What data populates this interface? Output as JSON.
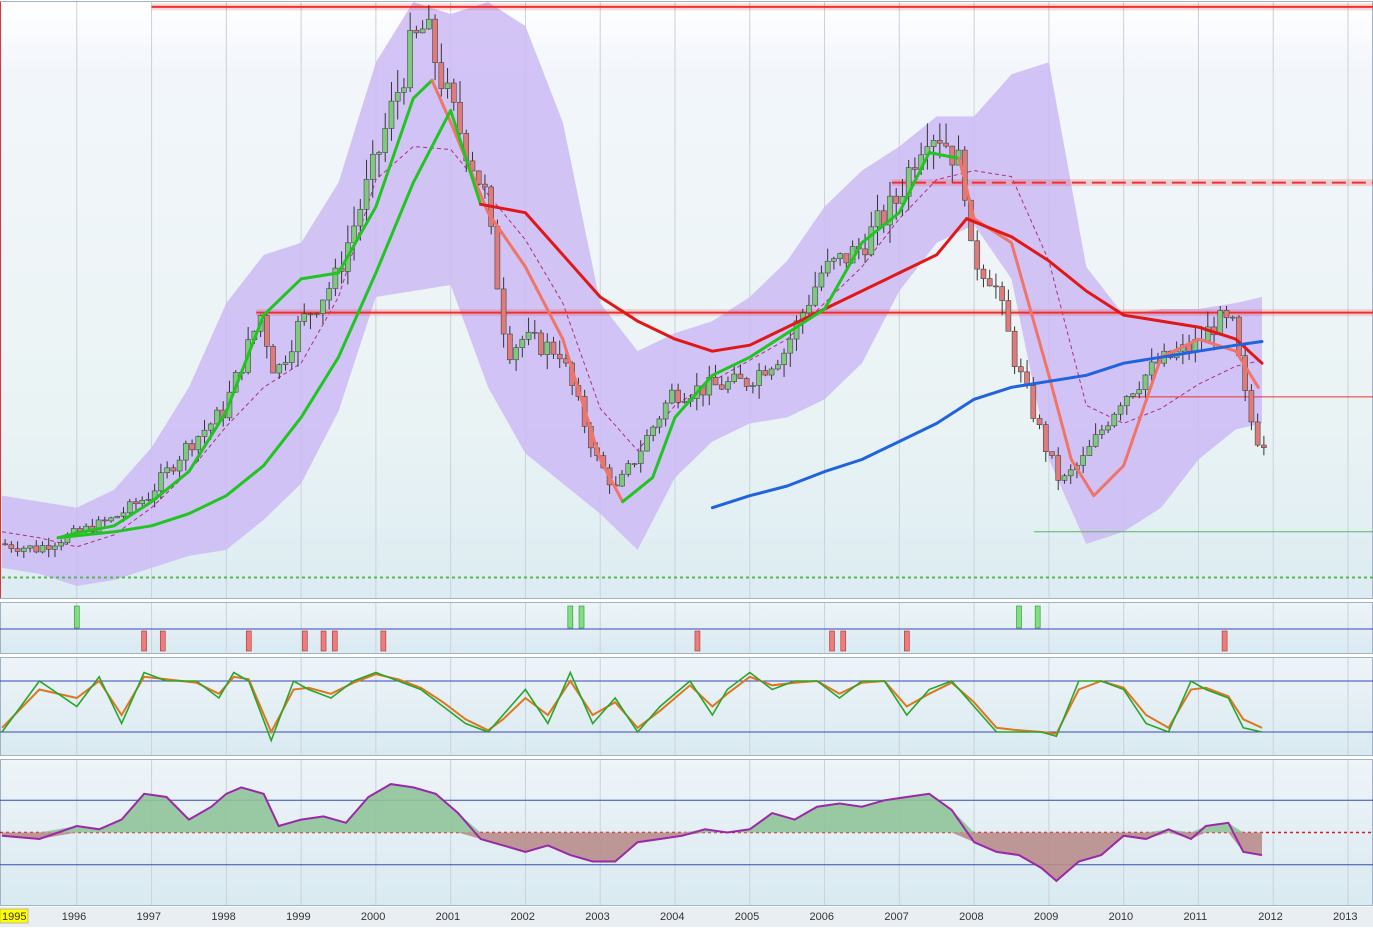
{
  "colors": {
    "background_top": "#f3f7fb",
    "background_bottom": "#d6e9f0",
    "band_fill": "#cdbaf5",
    "candle_up": "#7fc97f",
    "candle_down": "#e07b7b",
    "ma_green": "#22c422",
    "ma_salmon": "#f07468",
    "ma_red": "#e01818",
    "ma_blue": "#1f63e0",
    "level_red": "#ee3030",
    "level_green": "#5ab55a",
    "signal_buy": "#7ee07e",
    "signal_sell": "#ef7c7c",
    "osc_green": "#2aa52a",
    "osc_orange": "#dd7722",
    "hist_line": "#9a28a8",
    "hist_pos_fill": "#8fc49a",
    "hist_neg_fill": "#b98c8c",
    "panel_line": "#3949b6",
    "grid": "#c8d2de",
    "year_highlight": "#ffff00"
  },
  "chart_data": [
    {
      "type": "line",
      "panel": "price",
      "x_axis": {
        "start_year": 1995,
        "end_year": 2013,
        "tick_labels": [
          "1995",
          "1996",
          "1997",
          "1998",
          "1999",
          "2000",
          "2001",
          "2002",
          "2003",
          "2004",
          "2005",
          "2006",
          "2007",
          "2008",
          "2009",
          "2010",
          "2011",
          "2012",
          "2013"
        ],
        "highlighted_label": "1995"
      },
      "ylim": [
        -55,
        440
      ],
      "series": [
        {
          "role": "price",
          "style": "candlestick",
          "x": [
            1995.0,
            1995.5,
            1996.0,
            1996.5,
            1997.0,
            1997.5,
            1998.0,
            1998.5,
            1998.7,
            1999.0,
            1999.5,
            2000.0,
            2000.5,
            2000.7,
            2001.0,
            2001.5,
            2001.8,
            2002.0,
            2002.5,
            2003.0,
            2003.25,
            2003.5,
            2004.0,
            2004.5,
            2005.0,
            2005.5,
            2006.0,
            2006.5,
            2007.0,
            2007.4,
            2007.6,
            2007.9,
            2008.0,
            2008.3,
            2008.6,
            2009.0,
            2009.2,
            2009.5,
            2010.0,
            2010.5,
            2011.0,
            2011.3,
            2011.5,
            2011.7,
            2011.85
          ],
          "y": [
            -10,
            -14,
            -2,
            10,
            30,
            70,
            100,
            180,
            130,
            170,
            210,
            300,
            400,
            420,
            360,
            280,
            150,
            160,
            150,
            60,
            35,
            60,
            115,
            120,
            125,
            150,
            215,
            235,
            275,
            335,
            330,
            300,
            230,
            210,
            140,
            70,
            40,
            60,
            110,
            140,
            155,
            175,
            170,
            100,
            75
          ]
        },
        {
          "name": "green MA fast",
          "style": "line",
          "color_key": "ma_green",
          "width": 3,
          "x": [
            1995.75,
            1996.0,
            1996.5,
            1997.0,
            1997.5,
            1998.0,
            1998.5,
            1999.0,
            1999.5,
            2000.0,
            2000.5,
            2000.75
          ],
          "y": [
            -5,
            -1,
            5,
            25,
            50,
            100,
            180,
            210,
            215,
            270,
            360,
            375
          ]
        },
        {
          "name": "salmon MA",
          "style": "line",
          "color_key": "ma_salmon",
          "width": 3,
          "x": [
            2000.75,
            2001.0,
            2001.5,
            2002.0,
            2002.5,
            2003.0,
            2003.3
          ],
          "y": [
            375,
            340,
            265,
            220,
            160,
            60,
            25
          ]
        },
        {
          "name": "green MA slow",
          "style": "line",
          "color_key": "ma_green",
          "width": 3,
          "x": [
            1995.75,
            1996.5,
            1997.0,
            1997.5,
            1998.0,
            1998.5,
            1999.0,
            1999.5,
            2000.0,
            2000.5,
            2001.0,
            2001.4
          ],
          "y": [
            -5,
            0,
            5,
            15,
            30,
            55,
            95,
            145,
            215,
            290,
            350,
            272
          ]
        },
        {
          "name": "red MA",
          "style": "line",
          "color_key": "ma_red",
          "width": 3,
          "x": [
            2001.4,
            2002.0,
            2002.5,
            2003.0,
            2003.5,
            2004.0,
            2004.5,
            2005.0,
            2005.5,
            2006.0,
            2006.5,
            2007.0,
            2007.5,
            2007.9
          ],
          "y": [
            272,
            265,
            230,
            195,
            175,
            160,
            150,
            155,
            170,
            185,
            200,
            215,
            230,
            260
          ]
        },
        {
          "name": "green MA 2003-2008",
          "style": "line",
          "color_key": "ma_green",
          "width": 3,
          "x": [
            2003.3,
            2003.7,
            2004.0,
            2004.5,
            2005.0,
            2005.5,
            2006.0,
            2006.5,
            2007.0,
            2007.4,
            2007.8
          ],
          "y": [
            25,
            45,
            95,
            130,
            145,
            165,
            185,
            240,
            265,
            315,
            310
          ]
        },
        {
          "name": "salmon MA 2008-2012",
          "style": "line",
          "color_key": "ma_salmon",
          "width": 3,
          "x": [
            2007.8,
            2008.0,
            2008.5,
            2009.0,
            2009.3,
            2009.6,
            2010.0,
            2010.5,
            2011.0,
            2011.5,
            2011.8
          ],
          "y": [
            310,
            260,
            240,
            130,
            60,
            30,
            55,
            145,
            160,
            150,
            120
          ]
        },
        {
          "name": "red MA 2008-2012",
          "style": "line",
          "color_key": "ma_red",
          "width": 3,
          "x": [
            2007.9,
            2008.5,
            2009.0,
            2009.5,
            2010.0,
            2010.5,
            2011.0,
            2011.5,
            2011.85
          ],
          "y": [
            260,
            245,
            225,
            200,
            180,
            175,
            170,
            160,
            140
          ]
        },
        {
          "name": "blue MA",
          "style": "line",
          "color_key": "ma_blue",
          "width": 3,
          "x": [
            2004.5,
            2005.0,
            2005.5,
            2006.0,
            2006.5,
            2007.0,
            2007.5,
            2008.0,
            2008.5,
            2009.0,
            2009.5,
            2010.0,
            2010.5,
            2011.0,
            2011.5,
            2011.85
          ],
          "y": [
            20,
            30,
            38,
            50,
            60,
            75,
            90,
            110,
            120,
            125,
            130,
            140,
            145,
            150,
            155,
            158
          ]
        }
      ],
      "band": {
        "x": [
          1995.0,
          1995.5,
          1996.0,
          1996.5,
          1997.0,
          1997.5,
          1998.0,
          1998.5,
          1999.0,
          1999.5,
          2000.0,
          2000.5,
          2001.0,
          2001.5,
          2002.0,
          2002.5,
          2003.0,
          2003.5,
          2004.0,
          2004.5,
          2005.0,
          2005.5,
          2006.0,
          2006.5,
          2007.0,
          2007.5,
          2008.0,
          2008.5,
          2009.0,
          2009.5,
          2010.0,
          2010.5,
          2011.0,
          2011.5,
          2011.85
        ],
        "upper": [
          30,
          25,
          20,
          35,
          70,
          120,
          190,
          230,
          240,
          290,
          390,
          440,
          430,
          440,
          420,
          340,
          190,
          150,
          165,
          175,
          195,
          225,
          270,
          300,
          320,
          345,
          345,
          380,
          390,
          220,
          180,
          185,
          185,
          190,
          195
        ],
        "lower": [
          -30,
          -35,
          -45,
          -40,
          -30,
          -20,
          -15,
          10,
          40,
          100,
          195,
          200,
          205,
          120,
          65,
          40,
          15,
          -15,
          45,
          75,
          90,
          95,
          110,
          140,
          200,
          240,
          255,
          210,
          60,
          -10,
          0,
          20,
          60,
          85,
          90
        ]
      },
      "levels": [
        {
          "y": 436,
          "x_start": 1997.0,
          "color_key": "level_red"
        },
        {
          "y": 290,
          "x_start": 2006.9,
          "color_key": "level_red",
          "dashed": true
        },
        {
          "y": 182,
          "x_start": 1998.4,
          "color_key": "level_red"
        },
        {
          "y": 112,
          "x_start": 2010.0,
          "color_key": "level_red",
          "thin": true
        },
        {
          "y": 0,
          "x_start": 2008.8,
          "color_key": "level_green",
          "thin": true
        },
        {
          "y": -38,
          "x_start": 1995.0,
          "color_key": "level_green",
          "dotted": true
        }
      ]
    },
    {
      "type": "bar",
      "panel": "signals",
      "buy_x": [
        1996.0,
        2002.6,
        2002.75,
        2008.6,
        2008.85
      ],
      "sell_x": [
        1996.9,
        1997.15,
        1998.3,
        1999.05,
        1999.3,
        1999.45,
        2000.1,
        2004.3,
        2006.1,
        2006.25,
        2007.1,
        2011.35
      ]
    },
    {
      "type": "line",
      "panel": "oscillator",
      "ylim": [
        0,
        100
      ],
      "reference_levels": [
        20,
        80
      ],
      "series": [
        {
          "name": "K",
          "color_key": "osc_green",
          "x": [
            1995.0,
            1995.5,
            1996.0,
            1996.3,
            1996.6,
            1996.9,
            1997.2,
            1997.6,
            1997.9,
            1998.1,
            1998.3,
            1998.6,
            1998.9,
            1999.1,
            1999.4,
            1999.7,
            2000.0,
            2000.3,
            2000.6,
            2000.9,
            2001.2,
            2001.5,
            2001.7,
            2002.0,
            2002.3,
            2002.6,
            2002.9,
            2003.2,
            2003.5,
            2003.8,
            2004.2,
            2004.5,
            2004.7,
            2005.0,
            2005.3,
            2005.6,
            2005.9,
            2006.2,
            2006.5,
            2006.8,
            2007.1,
            2007.4,
            2007.7,
            2008.0,
            2008.3,
            2008.6,
            2008.9,
            2009.1,
            2009.4,
            2009.7,
            2010.0,
            2010.3,
            2010.6,
            2010.9,
            2011.1,
            2011.4,
            2011.6,
            2011.85
          ],
          "y": [
            20,
            80,
            50,
            85,
            30,
            90,
            80,
            80,
            60,
            90,
            80,
            10,
            80,
            70,
            60,
            80,
            90,
            80,
            70,
            50,
            30,
            20,
            40,
            70,
            30,
            90,
            30,
            60,
            20,
            50,
            80,
            40,
            70,
            90,
            70,
            80,
            80,
            60,
            80,
            80,
            40,
            70,
            80,
            50,
            20,
            20,
            20,
            15,
            80,
            80,
            70,
            30,
            20,
            80,
            70,
            60,
            25,
            20
          ]
        },
        {
          "name": "D",
          "color_key": "osc_orange",
          "x": [
            1995.0,
            1995.5,
            1996.0,
            1996.3,
            1996.6,
            1996.9,
            1997.2,
            1997.6,
            1997.9,
            1998.1,
            1998.3,
            1998.6,
            1998.9,
            1999.1,
            1999.4,
            1999.7,
            2000.0,
            2000.3,
            2000.6,
            2000.9,
            2001.2,
            2001.5,
            2001.7,
            2002.0,
            2002.3,
            2002.6,
            2002.9,
            2003.2,
            2003.5,
            2003.8,
            2004.2,
            2004.5,
            2004.7,
            2005.0,
            2005.3,
            2005.6,
            2005.9,
            2006.2,
            2006.5,
            2006.8,
            2007.1,
            2007.4,
            2007.7,
            2008.0,
            2008.3,
            2008.6,
            2008.9,
            2009.1,
            2009.4,
            2009.7,
            2010.0,
            2010.3,
            2010.6,
            2010.9,
            2011.1,
            2011.4,
            2011.6,
            2011.85
          ],
          "y": [
            25,
            70,
            60,
            80,
            40,
            85,
            82,
            78,
            65,
            85,
            82,
            20,
            70,
            72,
            65,
            78,
            88,
            82,
            72,
            55,
            35,
            22,
            35,
            60,
            40,
            80,
            40,
            55,
            25,
            45,
            75,
            50,
            65,
            85,
            75,
            78,
            80,
            65,
            78,
            80,
            50,
            65,
            78,
            55,
            25,
            22,
            20,
            18,
            70,
            80,
            72,
            40,
            25,
            70,
            72,
            62,
            35,
            25
          ]
        }
      ]
    },
    {
      "type": "area",
      "panel": "histogram",
      "ylim": [
        -100,
        100
      ],
      "reference_levels": [
        -50,
        0,
        50
      ],
      "x": [
        1995.0,
        1995.5,
        1996.0,
        1996.3,
        1996.6,
        1996.9,
        1997.2,
        1997.5,
        1997.8,
        1998.0,
        1998.2,
        1998.5,
        1998.7,
        1999.0,
        1999.3,
        1999.6,
        1999.9,
        2000.2,
        2000.5,
        2000.8,
        2001.1,
        2001.4,
        2001.7,
        2002.0,
        2002.3,
        2002.6,
        2002.9,
        2003.2,
        2003.5,
        2003.8,
        2004.1,
        2004.4,
        2004.7,
        2005.0,
        2005.3,
        2005.6,
        2005.9,
        2006.2,
        2006.5,
        2006.8,
        2007.1,
        2007.4,
        2007.7,
        2008.0,
        2008.3,
        2008.6,
        2008.9,
        2009.1,
        2009.4,
        2009.7,
        2010.0,
        2010.3,
        2010.6,
        2010.9,
        2011.1,
        2011.4,
        2011.6,
        2011.85
      ],
      "y": [
        -5,
        -10,
        10,
        5,
        20,
        60,
        55,
        20,
        40,
        60,
        70,
        60,
        10,
        20,
        25,
        15,
        55,
        75,
        70,
        60,
        30,
        -10,
        -20,
        -30,
        -20,
        -35,
        -45,
        -45,
        -15,
        -10,
        -5,
        5,
        0,
        5,
        30,
        20,
        40,
        45,
        40,
        50,
        55,
        60,
        35,
        -15,
        -30,
        -35,
        -55,
        -75,
        -45,
        -35,
        -5,
        -10,
        5,
        -10,
        10,
        15,
        -30,
        -35
      ]
    }
  ]
}
